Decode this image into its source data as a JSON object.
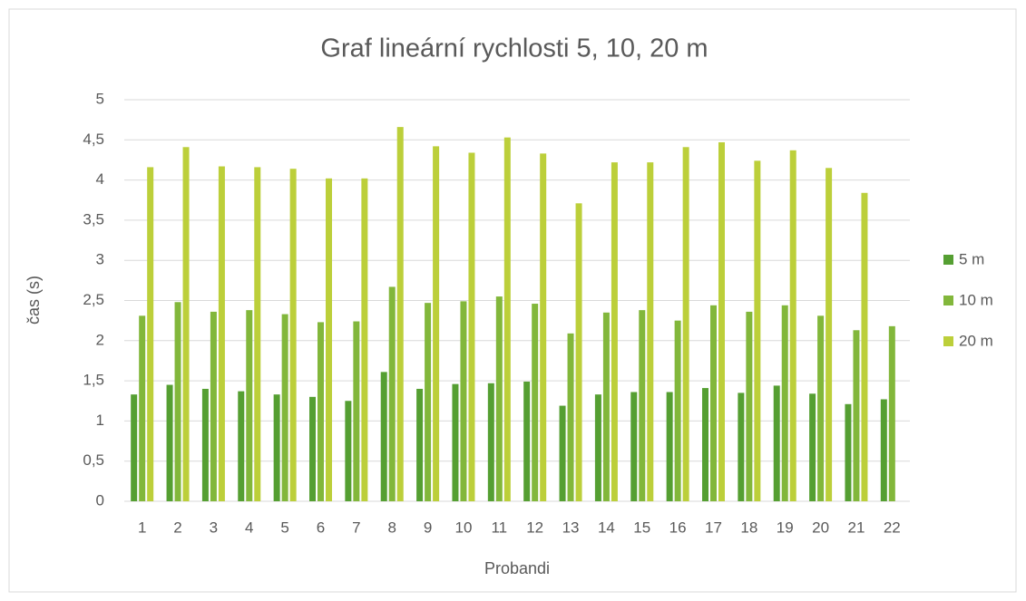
{
  "chart_data": {
    "type": "bar",
    "title": "Graf lineární rychlosti 5, 10, 20 m",
    "x_label": "Probandi",
    "y_label": "čas (s)",
    "categories": [
      "1",
      "2",
      "3",
      "4",
      "5",
      "6",
      "7",
      "8",
      "9",
      "10",
      "11",
      "12",
      "13",
      "14",
      "15",
      "16",
      "17",
      "18",
      "19",
      "20",
      "21",
      "22"
    ],
    "series": [
      {
        "name": "5 m",
        "color": "#559f32",
        "values": [
          1.33,
          1.45,
          1.4,
          1.37,
          1.33,
          1.3,
          1.25,
          1.61,
          1.4,
          1.46,
          1.47,
          1.49,
          1.19,
          1.33,
          1.36,
          1.36,
          1.41,
          1.35,
          1.44,
          1.34,
          1.21,
          1.27
        ]
      },
      {
        "name": "10 m",
        "color": "#82b73b",
        "values": [
          2.31,
          2.48,
          2.36,
          2.38,
          2.33,
          2.23,
          2.24,
          2.67,
          2.47,
          2.49,
          2.55,
          2.46,
          2.09,
          2.35,
          2.38,
          2.25,
          2.44,
          2.36,
          2.44,
          2.31,
          2.13,
          2.18
        ]
      },
      {
        "name": "20 m",
        "color": "#bccf3a",
        "values": [
          4.16,
          4.41,
          4.17,
          4.16,
          4.14,
          4.02,
          4.02,
          4.66,
          4.42,
          4.34,
          4.53,
          4.33,
          3.71,
          4.22,
          4.22,
          4.41,
          4.47,
          4.24,
          4.37,
          4.15,
          3.84,
          null
        ]
      }
    ],
    "ylim": [
      0,
      5
    ],
    "yticks": [
      0,
      {
        "value": 0.5,
        "label": "0,5"
      },
      1,
      {
        "value": 1.5,
        "label": "1,5"
      },
      2,
      {
        "value": 2.5,
        "label": "2,5"
      },
      3,
      {
        "value": 3.5,
        "label": "3,5"
      },
      4,
      {
        "value": 4.5,
        "label": "4,5"
      },
      5
    ],
    "grid": true,
    "legend": "right"
  }
}
